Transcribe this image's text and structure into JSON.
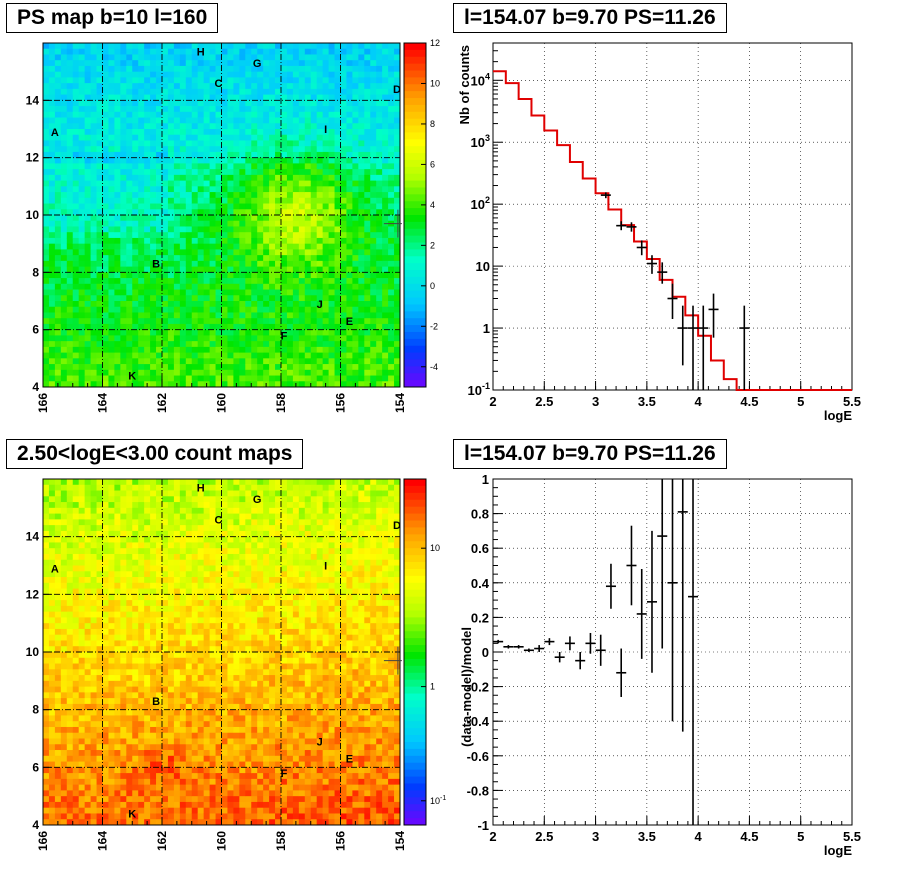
{
  "titles": {
    "top_left": "PS map b=10 l=160",
    "top_right": "l=154.07 b=9.70 PS=11.26",
    "bottom_left": "2.50<logE<3.00 count maps",
    "bottom_right": "l=154.07 b=9.70 PS=11.26"
  },
  "source_labels": [
    {
      "name": "H",
      "l": 160.7,
      "b": 15.7
    },
    {
      "name": "G",
      "l": 158.8,
      "b": 15.3
    },
    {
      "name": "C",
      "l": 160.1,
      "b": 14.6
    },
    {
      "name": "D",
      "l": 154.1,
      "b": 14.4
    },
    {
      "name": "A",
      "l": 165.6,
      "b": 12.9
    },
    {
      "name": "I",
      "l": 156.5,
      "b": 13.0
    },
    {
      "name": "B",
      "l": 162.2,
      "b": 8.3
    },
    {
      "name": "J",
      "l": 156.7,
      "b": 6.9
    },
    {
      "name": "E",
      "l": 155.7,
      "b": 6.3
    },
    {
      "name": "F",
      "l": 157.9,
      "b": 5.8
    },
    {
      "name": "K",
      "l": 163.0,
      "b": 4.4
    }
  ],
  "marker": {
    "l": 154.07,
    "b": 9.7
  },
  "chart_data": [
    {
      "type": "heatmap",
      "title": "PS map b=10 l=160",
      "xlim": [
        166,
        154
      ],
      "ylim": [
        4,
        16
      ],
      "x_ticks": [
        "166",
        "164",
        "162",
        "160",
        "158",
        "156",
        "154"
      ],
      "y_ticks": [
        "4",
        "6",
        "8",
        "10",
        "12",
        "14"
      ],
      "z_range": [
        -5,
        12
      ],
      "z_ticks": [
        "12",
        "10",
        "8",
        "6",
        "4",
        "2",
        "0",
        "-2",
        "-4"
      ],
      "grid": true
    },
    {
      "type": "line",
      "title": "l=154.07 b=9.70 PS=11.26",
      "xlabel": "logE",
      "ylabel": "Nb of counts",
      "xlim": [
        2,
        5.5
      ],
      "ylim": [
        0.1,
        40000
      ],
      "log_y": true,
      "x_ticks": [
        "2",
        "2.5",
        "3",
        "3.5",
        "4",
        "4.5",
        "5",
        "5.5"
      ],
      "y_ticks": [
        {
          "label": "10",
          "sup": "-1"
        },
        {
          "label": "1",
          "sup": ""
        },
        {
          "label": "10",
          "sup": ""
        },
        {
          "label": "10",
          "sup": "2"
        },
        {
          "label": "10",
          "sup": "3"
        },
        {
          "label": "10",
          "sup": "4"
        }
      ],
      "model_step": {
        "edges": [
          2.0,
          2.125,
          2.25,
          2.375,
          2.5,
          2.625,
          2.75,
          2.875,
          3.0,
          3.125,
          3.25,
          3.375,
          3.5,
          3.625,
          3.75,
          3.875,
          4.0,
          4.125,
          4.25,
          4.375,
          4.5,
          5.5
        ],
        "values": [
          14000,
          9000,
          5000,
          2700,
          1550,
          900,
          480,
          260,
          150,
          82,
          46,
          25,
          13,
          6,
          3.2,
          1.6,
          0.75,
          0.3,
          0.15,
          0.1,
          0.1
        ]
      },
      "data_points": [
        {
          "x": 3.1,
          "y": 140,
          "lo": 125,
          "hi": 155
        },
        {
          "x": 3.25,
          "y": 45,
          "lo": 38,
          "hi": 53
        },
        {
          "x": 3.35,
          "y": 43,
          "lo": 36,
          "hi": 51
        },
        {
          "x": 3.45,
          "y": 20,
          "lo": 15,
          "hi": 26
        },
        {
          "x": 3.55,
          "y": 11,
          "lo": 7.5,
          "hi": 15
        },
        {
          "x": 3.65,
          "y": 8,
          "lo": 5.2,
          "hi": 11.5
        },
        {
          "x": 3.75,
          "y": 3,
          "lo": 1.4,
          "hi": 5.2
        },
        {
          "x": 3.85,
          "y": 1,
          "lo": 0.25,
          "hi": 2.3
        },
        {
          "x": 3.95,
          "y": 1,
          "lo": 0.1,
          "hi": 2.3
        },
        {
          "x": 4.05,
          "y": 1,
          "lo": 0.1,
          "hi": 2.3
        },
        {
          "x": 4.15,
          "y": 2,
          "lo": 0.7,
          "hi": 3.6
        },
        {
          "x": 4.45,
          "y": 1,
          "lo": 0.1,
          "hi": 2.3
        }
      ],
      "grid": true
    },
    {
      "type": "heatmap",
      "title": "2.50<logE<3.00 count maps",
      "xlim": [
        166,
        154
      ],
      "ylim": [
        4,
        16
      ],
      "x_ticks": [
        "166",
        "164",
        "162",
        "160",
        "158",
        "156",
        "154"
      ],
      "y_ticks": [
        "4",
        "6",
        "8",
        "10",
        "12",
        "14"
      ],
      "log_z": true,
      "z_ticks": [
        {
          "label": "10",
          "sup": ""
        },
        {
          "label": "1",
          "sup": ""
        },
        {
          "label": "10",
          "sup": "-1"
        }
      ],
      "grid": true
    },
    {
      "type": "scatter",
      "title": "l=154.07 b=9.70 PS=11.26",
      "xlabel": "logE",
      "ylabel": "(data-model)/model",
      "xlim": [
        2,
        5.5
      ],
      "ylim": [
        -1,
        1
      ],
      "x_ticks": [
        "2",
        "2.5",
        "3",
        "3.5",
        "4",
        "4.5",
        "5",
        "5.5"
      ],
      "y_ticks": [
        "-1",
        "-0.8",
        "-0.6",
        "-0.4",
        "-0.2",
        "0",
        "0.2",
        "0.4",
        "0.6",
        "0.8",
        "1"
      ],
      "data_points": [
        {
          "x": 2.05,
          "y": 0.06,
          "err": 0.01
        },
        {
          "x": 2.15,
          "y": 0.03,
          "err": 0.01
        },
        {
          "x": 2.25,
          "y": 0.03,
          "err": 0.01
        },
        {
          "x": 2.35,
          "y": 0.01,
          "err": 0.01
        },
        {
          "x": 2.45,
          "y": 0.02,
          "err": 0.02
        },
        {
          "x": 2.55,
          "y": 0.06,
          "err": 0.02
        },
        {
          "x": 2.65,
          "y": -0.03,
          "err": 0.03
        },
        {
          "x": 2.75,
          "y": 0.05,
          "err": 0.04
        },
        {
          "x": 2.85,
          "y": -0.05,
          "err": 0.05
        },
        {
          "x": 2.95,
          "y": 0.05,
          "err": 0.06
        },
        {
          "x": 3.05,
          "y": 0.01,
          "err": 0.09
        },
        {
          "x": 3.15,
          "y": 0.38,
          "err": 0.13
        },
        {
          "x": 3.25,
          "y": -0.12,
          "err": 0.14
        },
        {
          "x": 3.35,
          "y": 0.5,
          "err": 0.23
        },
        {
          "x": 3.45,
          "y": 0.22,
          "err": 0.26
        },
        {
          "x": 3.55,
          "y": 0.29,
          "err": 0.41
        },
        {
          "x": 3.65,
          "y": 0.67,
          "err": 0.65
        },
        {
          "x": 3.75,
          "y": 0.4,
          "err": 0.8
        },
        {
          "x": 3.85,
          "y": 0.81,
          "err": 1.27
        },
        {
          "x": 3.95,
          "y": 0.32,
          "err": 1.9
        }
      ],
      "grid": true
    }
  ]
}
